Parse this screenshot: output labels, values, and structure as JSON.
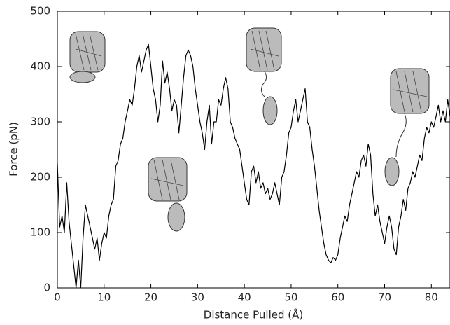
{
  "chart_data": {
    "type": "line",
    "x_label": "Distance Pulled (Å)",
    "y_label": "Force (pN)",
    "color": "#000000",
    "xlim": [
      0,
      84
    ],
    "xticks": [
      0,
      10,
      20,
      30,
      40,
      50,
      60,
      70,
      80
    ],
    "ylim": [
      0,
      500
    ],
    "yticks": [
      0,
      100,
      200,
      300,
      400,
      500
    ],
    "x": [
      0,
      0.5,
      1,
      1.5,
      2,
      2.5,
      3,
      3.5,
      4,
      4.5,
      5,
      5.5,
      6,
      6.5,
      7,
      7.5,
      8,
      8.5,
      9,
      9.5,
      10,
      10.5,
      11,
      11.5,
      12,
      12.5,
      13,
      13.5,
      14,
      14.5,
      15,
      15.5,
      16,
      16.5,
      17,
      17.5,
      18,
      18.5,
      19,
      19.5,
      20,
      20.5,
      21,
      21.5,
      22,
      22.5,
      23,
      23.5,
      24,
      24.5,
      25,
      25.5,
      26,
      26.5,
      27,
      27.5,
      28,
      28.5,
      29,
      29.5,
      30,
      30.5,
      31,
      31.5,
      32,
      32.5,
      33,
      33.5,
      34,
      34.5,
      35,
      35.5,
      36,
      36.5,
      37,
      37.5,
      38,
      38.5,
      39,
      39.5,
      40,
      40.5,
      41,
      41.5,
      42,
      42.5,
      43,
      43.5,
      44,
      44.5,
      45,
      45.5,
      46,
      46.5,
      47,
      47.5,
      48,
      48.5,
      49,
      49.5,
      50,
      50.5,
      51,
      51.5,
      52,
      52.5,
      53,
      53.5,
      54,
      54.5,
      55,
      55.5,
      56,
      56.5,
      57,
      57.5,
      58,
      58.5,
      59,
      59.5,
      60,
      60.5,
      61,
      61.5,
      62,
      62.5,
      63,
      63.5,
      64,
      64.5,
      65,
      65.5,
      66,
      66.5,
      67,
      67.5,
      68,
      68.5,
      69,
      69.5,
      70,
      70.5,
      71,
      71.5,
      72,
      72.5,
      73,
      73.5,
      74,
      74.5,
      75,
      75.5,
      76,
      76.5,
      77,
      77.5,
      78,
      78.5,
      79,
      79.5,
      80,
      80.5,
      81,
      81.5,
      82,
      82.5,
      83,
      83.5,
      84
    ],
    "values": [
      225,
      110,
      130,
      100,
      190,
      120,
      80,
      40,
      0,
      50,
      0,
      90,
      150,
      130,
      110,
      90,
      70,
      90,
      50,
      80,
      100,
      90,
      130,
      150,
      160,
      220,
      230,
      260,
      270,
      300,
      320,
      340,
      330,
      360,
      400,
      420,
      390,
      410,
      430,
      440,
      400,
      360,
      340,
      300,
      330,
      410,
      370,
      390,
      360,
      320,
      340,
      330,
      280,
      330,
      380,
      420,
      430,
      420,
      400,
      360,
      330,
      300,
      280,
      250,
      300,
      330,
      260,
      300,
      300,
      340,
      330,
      360,
      380,
      360,
      300,
      290,
      270,
      260,
      250,
      220,
      190,
      160,
      150,
      210,
      220,
      190,
      210,
      180,
      190,
      170,
      180,
      160,
      170,
      190,
      170,
      150,
      200,
      210,
      240,
      280,
      290,
      320,
      340,
      300,
      320,
      340,
      360,
      300,
      290,
      250,
      220,
      180,
      140,
      110,
      80,
      60,
      50,
      45,
      55,
      50,
      60,
      90,
      110,
      130,
      120,
      150,
      170,
      190,
      210,
      200,
      230,
      240,
      220,
      260,
      240,
      170,
      130,
      150,
      120,
      100,
      80,
      110,
      130,
      110,
      70,
      60,
      110,
      130,
      160,
      140,
      180,
      190,
      210,
      200,
      220,
      240,
      230,
      270,
      290,
      280,
      300,
      290,
      310,
      330,
      300,
      320,
      300,
      340,
      310
    ]
  }
}
